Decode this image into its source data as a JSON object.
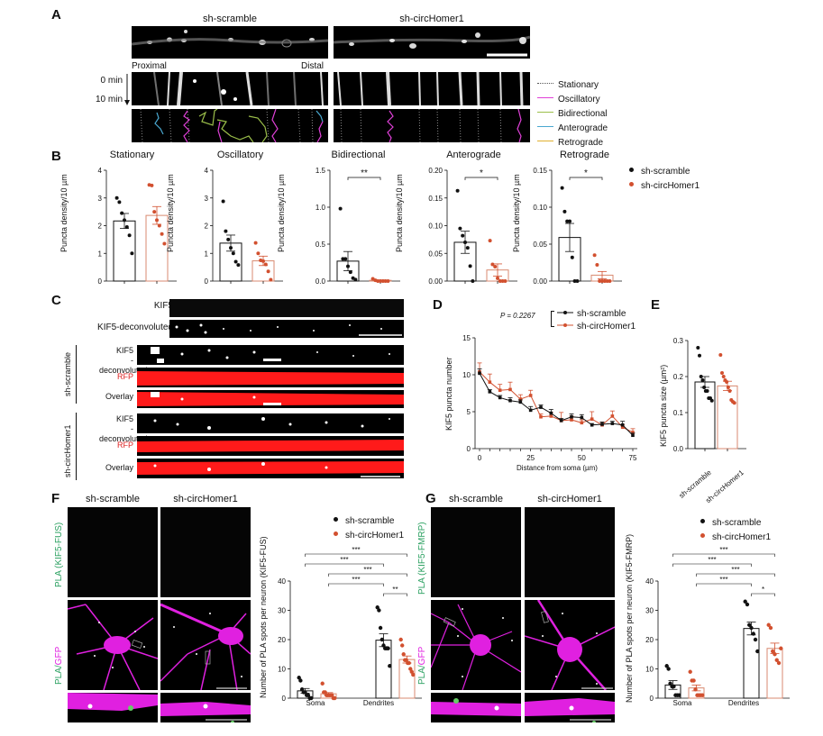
{
  "colors": {
    "scramble": "#111111",
    "circhomer": "#d2502f",
    "stationary": "#888888",
    "oscillatory": "#e040d8",
    "bidirectional": "#9bbf4a",
    "anterograde": "#4aa8d0",
    "retrograde": "#e0b030",
    "pla_green": "#2aa060",
    "gfp_magenta": "#e020e0",
    "rfp_red": "#ff1a1a"
  },
  "panelA": {
    "letter": "A",
    "col_titles": [
      "sh-scramble",
      "sh-circHomer1"
    ],
    "proximal": "Proximal",
    "distal": "Distal",
    "time_start": "0 min",
    "time_end": "10 min",
    "legend": [
      "Stationary",
      "Oscillatory",
      "Bidirectional",
      "Anterograde",
      "Retrograde"
    ]
  },
  "panelB": {
    "letter": "B",
    "legend": [
      "sh-scramble",
      "sh-circHomer1"
    ]
  },
  "panelC": {
    "letter": "C",
    "top_rows": [
      "KIF5",
      "KIF5-deconvoluted"
    ],
    "groups": [
      {
        "name": "sh-scramble",
        "rows": [
          "KIF5\n-deconvoluted",
          "RFP",
          "Overlay"
        ]
      },
      {
        "name": "sh-circHomer1",
        "rows": [
          "KIF5\n-deconvoluted",
          "RFP",
          "Overlay"
        ]
      }
    ],
    "row_kif5_a": "KIF5",
    "row_kif5_b": "-deconvoluted",
    "row_rfp": "RFP",
    "row_overlay": "Overlay"
  },
  "panelD": {
    "letter": "D",
    "pvalue": "P = 0.2267"
  },
  "panelE": {
    "letter": "E"
  },
  "panelF": {
    "letter": "F",
    "col_titles": [
      "sh-scramble",
      "sh-circHomer1"
    ],
    "row1": "PLA (KIF5-FUS)",
    "row2a": "PLA/",
    "row2b": "GFP"
  },
  "panelG": {
    "letter": "G",
    "col_titles": [
      "sh-scramble",
      "sh-circHomer1"
    ],
    "row1": "PLA (KIF5-FMRP)",
    "row2a": "PLA/",
    "row2b": "GFP"
  },
  "chart_data": [
    {
      "id": "B-stationary",
      "type": "bar",
      "title": "Stationary",
      "ylabel": "Puncta density/10 µm",
      "ylim": [
        0,
        4
      ],
      "yticks": [
        0,
        1,
        2,
        3,
        4
      ],
      "categories": [
        "sh-scramble",
        "sh-circHomer1"
      ],
      "series": [
        {
          "name": "sh-scramble",
          "mean": 2.17,
          "sem": 0.27,
          "points": [
            3.0,
            2.85,
            2.45,
            2.2,
            1.95,
            1.65,
            1.0
          ]
        },
        {
          "name": "sh-circHomer1",
          "mean": 2.37,
          "sem": 0.32,
          "points": [
            3.47,
            3.45,
            2.5,
            2.2,
            2.0,
            1.7,
            1.35
          ]
        }
      ],
      "significance": ""
    },
    {
      "id": "B-oscillatory",
      "type": "bar",
      "title": "Oscillatory",
      "ylabel": "Puncta density/10 µm",
      "ylim": [
        0,
        4
      ],
      "yticks": [
        0,
        1,
        2,
        3,
        4
      ],
      "categories": [
        "sh-scramble",
        "sh-circHomer1"
      ],
      "series": [
        {
          "name": "sh-scramble",
          "mean": 1.37,
          "sem": 0.29,
          "points": [
            2.88,
            1.8,
            1.5,
            1.2,
            1.0,
            0.7,
            0.58
          ]
        },
        {
          "name": "sh-circHomer1",
          "mean": 0.73,
          "sem": 0.17,
          "points": [
            1.38,
            1.0,
            0.75,
            0.72,
            0.6,
            0.35,
            0.05
          ]
        }
      ],
      "significance": ""
    },
    {
      "id": "B-bidirectional",
      "type": "bar",
      "title": "Bidirectional",
      "ylabel": "Puncta density/10 µm",
      "ylim": [
        0,
        1.5
      ],
      "yticks": [
        0.0,
        0.5,
        1.0,
        1.5
      ],
      "categories": [
        "sh-scramble",
        "sh-circHomer1"
      ],
      "series": [
        {
          "name": "sh-scramble",
          "mean": 0.27,
          "sem": 0.13,
          "points": [
            0.98,
            0.3,
            0.3,
            0.2,
            0.12,
            0.04,
            0.02
          ]
        },
        {
          "name": "sh-circHomer1",
          "mean": 0.01,
          "sem": 0.005,
          "points": [
            0.03,
            0.01,
            0.0,
            0.0,
            0.0,
            0.0,
            0.0
          ]
        }
      ],
      "significance": "**"
    },
    {
      "id": "B-anterograde",
      "type": "bar",
      "title": "Anterograde",
      "ylabel": "Puncta density/10 µm",
      "ylim": [
        0,
        0.2
      ],
      "yticks": [
        0.0,
        0.05,
        0.1,
        0.15,
        0.2
      ],
      "categories": [
        "sh-scramble",
        "sh-circHomer1"
      ],
      "series": [
        {
          "name": "sh-scramble",
          "mean": 0.07,
          "sem": 0.02,
          "points": [
            0.163,
            0.095,
            0.082,
            0.07,
            0.06,
            0.027,
            0.0
          ]
        },
        {
          "name": "sh-circHomer1",
          "mean": 0.02,
          "sem": 0.011,
          "points": [
            0.073,
            0.03,
            0.026,
            0.005,
            0.0,
            0.0,
            0.0
          ]
        }
      ],
      "significance": "*"
    },
    {
      "id": "B-retrograde",
      "type": "bar",
      "title": "Retrograde",
      "ylabel": "Puncta density/10 µm",
      "ylim": [
        0,
        0.15
      ],
      "yticks": [
        0.0,
        0.05,
        0.1,
        0.15
      ],
      "categories": [
        "sh-scramble",
        "sh-circHomer1"
      ],
      "series": [
        {
          "name": "sh-scramble",
          "mean": 0.059,
          "sem": 0.019,
          "points": [
            0.126,
            0.094,
            0.081,
            0.081,
            0.032,
            0.0,
            0.0
          ]
        },
        {
          "name": "sh-circHomer1",
          "mean": 0.008,
          "sem": 0.005,
          "points": [
            0.035,
            0.022,
            0.0,
            0.0,
            0.0,
            0.0,
            0.0
          ]
        }
      ],
      "significance": "*"
    },
    {
      "id": "D",
      "type": "line",
      "title": "",
      "xlabel": "Distance from soma (µm)",
      "ylabel": "KIF5 puncta number",
      "xlim": [
        0,
        75
      ],
      "xticks": [
        0,
        25,
        50,
        75
      ],
      "ylim": [
        0,
        15
      ],
      "yticks": [
        0,
        5,
        10,
        15
      ],
      "x": [
        0,
        5,
        10,
        15,
        20,
        25,
        30,
        35,
        40,
        45,
        50,
        55,
        60,
        65,
        70,
        75
      ],
      "series": [
        {
          "name": "sh-scramble",
          "values": [
            10.2,
            7.7,
            6.9,
            6.5,
            6.3,
            5.2,
            5.6,
            4.8,
            3.8,
            4.3,
            4.2,
            3.2,
            3.3,
            3.4,
            3.2,
            1.8
          ],
          "errors": [
            0.6,
            0.3,
            0.3,
            0.4,
            0.3,
            0.5,
            0.3,
            0.5,
            0.3,
            0.4,
            0.4,
            0.2,
            0.3,
            0.3,
            0.5,
            0.3
          ]
        },
        {
          "name": "sh-circHomer1",
          "values": [
            10.4,
            9.0,
            7.9,
            8.0,
            6.7,
            7.2,
            4.3,
            4.4,
            3.8,
            3.9,
            3.5,
            4.0,
            3.2,
            4.4,
            2.9,
            2.2
          ],
          "errors": [
            1.2,
            1.1,
            0.8,
            1.0,
            0.6,
            0.7,
            0.4,
            0.5,
            1.1,
            0.5,
            0.4,
            1.0,
            0.4,
            0.7,
            0.3,
            0.5
          ]
        }
      ],
      "annotation": "P = 0.2267",
      "legend_position": "top-right"
    },
    {
      "id": "E",
      "type": "bar",
      "title": "",
      "ylabel": "KIF5 puncta size (µm²)",
      "ylim": [
        0,
        0.3
      ],
      "yticks": [
        0.0,
        0.1,
        0.2,
        0.3
      ],
      "categories": [
        "sh-scramble",
        "sh-circHomer1"
      ],
      "series": [
        {
          "name": "sh-scramble",
          "mean": 0.185,
          "sem": 0.015,
          "points": [
            0.28,
            0.258,
            0.2,
            0.19,
            0.17,
            0.16,
            0.16,
            0.14,
            0.14,
            0.133
          ]
        },
        {
          "name": "sh-circHomer1",
          "mean": 0.174,
          "sem": 0.013,
          "points": [
            0.26,
            0.21,
            0.2,
            0.19,
            0.185,
            0.17,
            0.16,
            0.135,
            0.13,
            0.127
          ]
        }
      ]
    },
    {
      "id": "F",
      "type": "bar",
      "title": "",
      "ylabel": "Number of PLA spots per neuron (KIF5-FUS)",
      "ylim": [
        0,
        40
      ],
      "yticks": [
        0,
        10,
        20,
        30,
        40
      ],
      "categories": [
        "Soma",
        "Dendrites"
      ],
      "series": [
        {
          "name": "sh-scramble",
          "means": [
            2.5,
            19.8
          ],
          "sems": [
            0.8,
            2.2
          ],
          "points": [
            [
              7,
              6,
              3,
              2,
              2,
              1,
              1,
              0,
              0
            ],
            [
              31,
              30,
              24,
              20,
              18,
              17,
              17,
              17,
              11
            ]
          ]
        },
        {
          "name": "sh-circHomer1",
          "means": [
            1.5,
            13.2
          ],
          "sems": [
            0.4,
            1.2
          ],
          "points": [
            [
              5,
              2,
              2,
              1,
              1,
              1,
              1,
              1,
              0,
              0
            ],
            [
              20,
              18,
              15,
              13,
              13,
              12,
              12,
              10,
              9,
              8
            ]
          ]
        }
      ],
      "significance": [
        {
          "from": "Soma sh-scramble",
          "to": "Dendrites sh-circHomer1",
          "label": "***"
        },
        {
          "from": "Soma sh-scramble",
          "to": "Dendrites sh-scramble",
          "label": "***"
        },
        {
          "from": "Soma sh-circHomer1",
          "to": "Dendrites sh-circHomer1",
          "label": "***"
        },
        {
          "from": "Soma sh-circHomer1",
          "to": "Dendrites sh-scramble",
          "label": "***"
        },
        {
          "from": "Dendrites sh-scramble",
          "to": "Dendrites sh-circHomer1",
          "label": "**"
        }
      ]
    },
    {
      "id": "G",
      "type": "bar",
      "title": "",
      "ylabel": "Number of PLA spots per neuron (KIF5-FMRP)",
      "ylim": [
        0,
        40
      ],
      "yticks": [
        0,
        10,
        20,
        30,
        40
      ],
      "categories": [
        "Soma",
        "Dendrites"
      ],
      "series": [
        {
          "name": "sh-scramble",
          "means": [
            4.5,
            23.8
          ],
          "sems": [
            1.5,
            2.2
          ],
          "points": [
            [
              11,
              10,
              5,
              4,
              4,
              1,
              1,
              1
            ],
            [
              33,
              32,
              25,
              24,
              22,
              20,
              16
            ]
          ]
        },
        {
          "name": "sh-circHomer1",
          "means": [
            3.5,
            17.0
          ],
          "sems": [
            1.0,
            1.8
          ],
          "points": [
            [
              9,
              6,
              6,
              3,
              1,
              1,
              1,
              1
            ],
            [
              25,
              24,
              16,
              15,
              13,
              12,
              17
            ]
          ]
        }
      ],
      "significance": [
        {
          "from": "Soma sh-scramble",
          "to": "Dendrites sh-circHomer1",
          "label": "***"
        },
        {
          "from": "Soma sh-scramble",
          "to": "Dendrites sh-scramble",
          "label": "***"
        },
        {
          "from": "Soma sh-circHomer1",
          "to": "Dendrites sh-circHomer1",
          "label": "***"
        },
        {
          "from": "Soma sh-circHomer1",
          "to": "Dendrites sh-scramble",
          "label": "***"
        },
        {
          "from": "Dendrites sh-scramble",
          "to": "Dendrites sh-circHomer1",
          "label": "*"
        }
      ]
    }
  ]
}
